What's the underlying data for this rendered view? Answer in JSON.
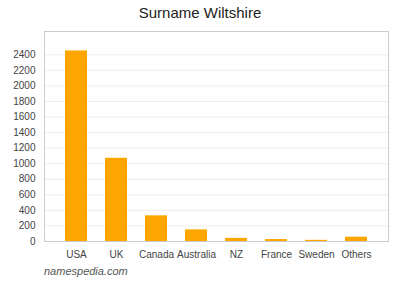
{
  "chart_data": {
    "type": "bar",
    "title": "Surname Wiltshire",
    "categories": [
      "USA",
      "UK",
      "Canada",
      "Australia",
      "NZ",
      "France",
      "Sweden",
      "Others"
    ],
    "values": [
      2450,
      1070,
      330,
      150,
      40,
      25,
      15,
      55
    ],
    "color": "#FFA500",
    "ylim": [
      0,
      2700
    ],
    "yticks": [
      0,
      200,
      400,
      600,
      800,
      1000,
      1200,
      1400,
      1600,
      1800,
      2000,
      2200,
      2400
    ],
    "grid": true,
    "caption": "namespedia.com"
  }
}
